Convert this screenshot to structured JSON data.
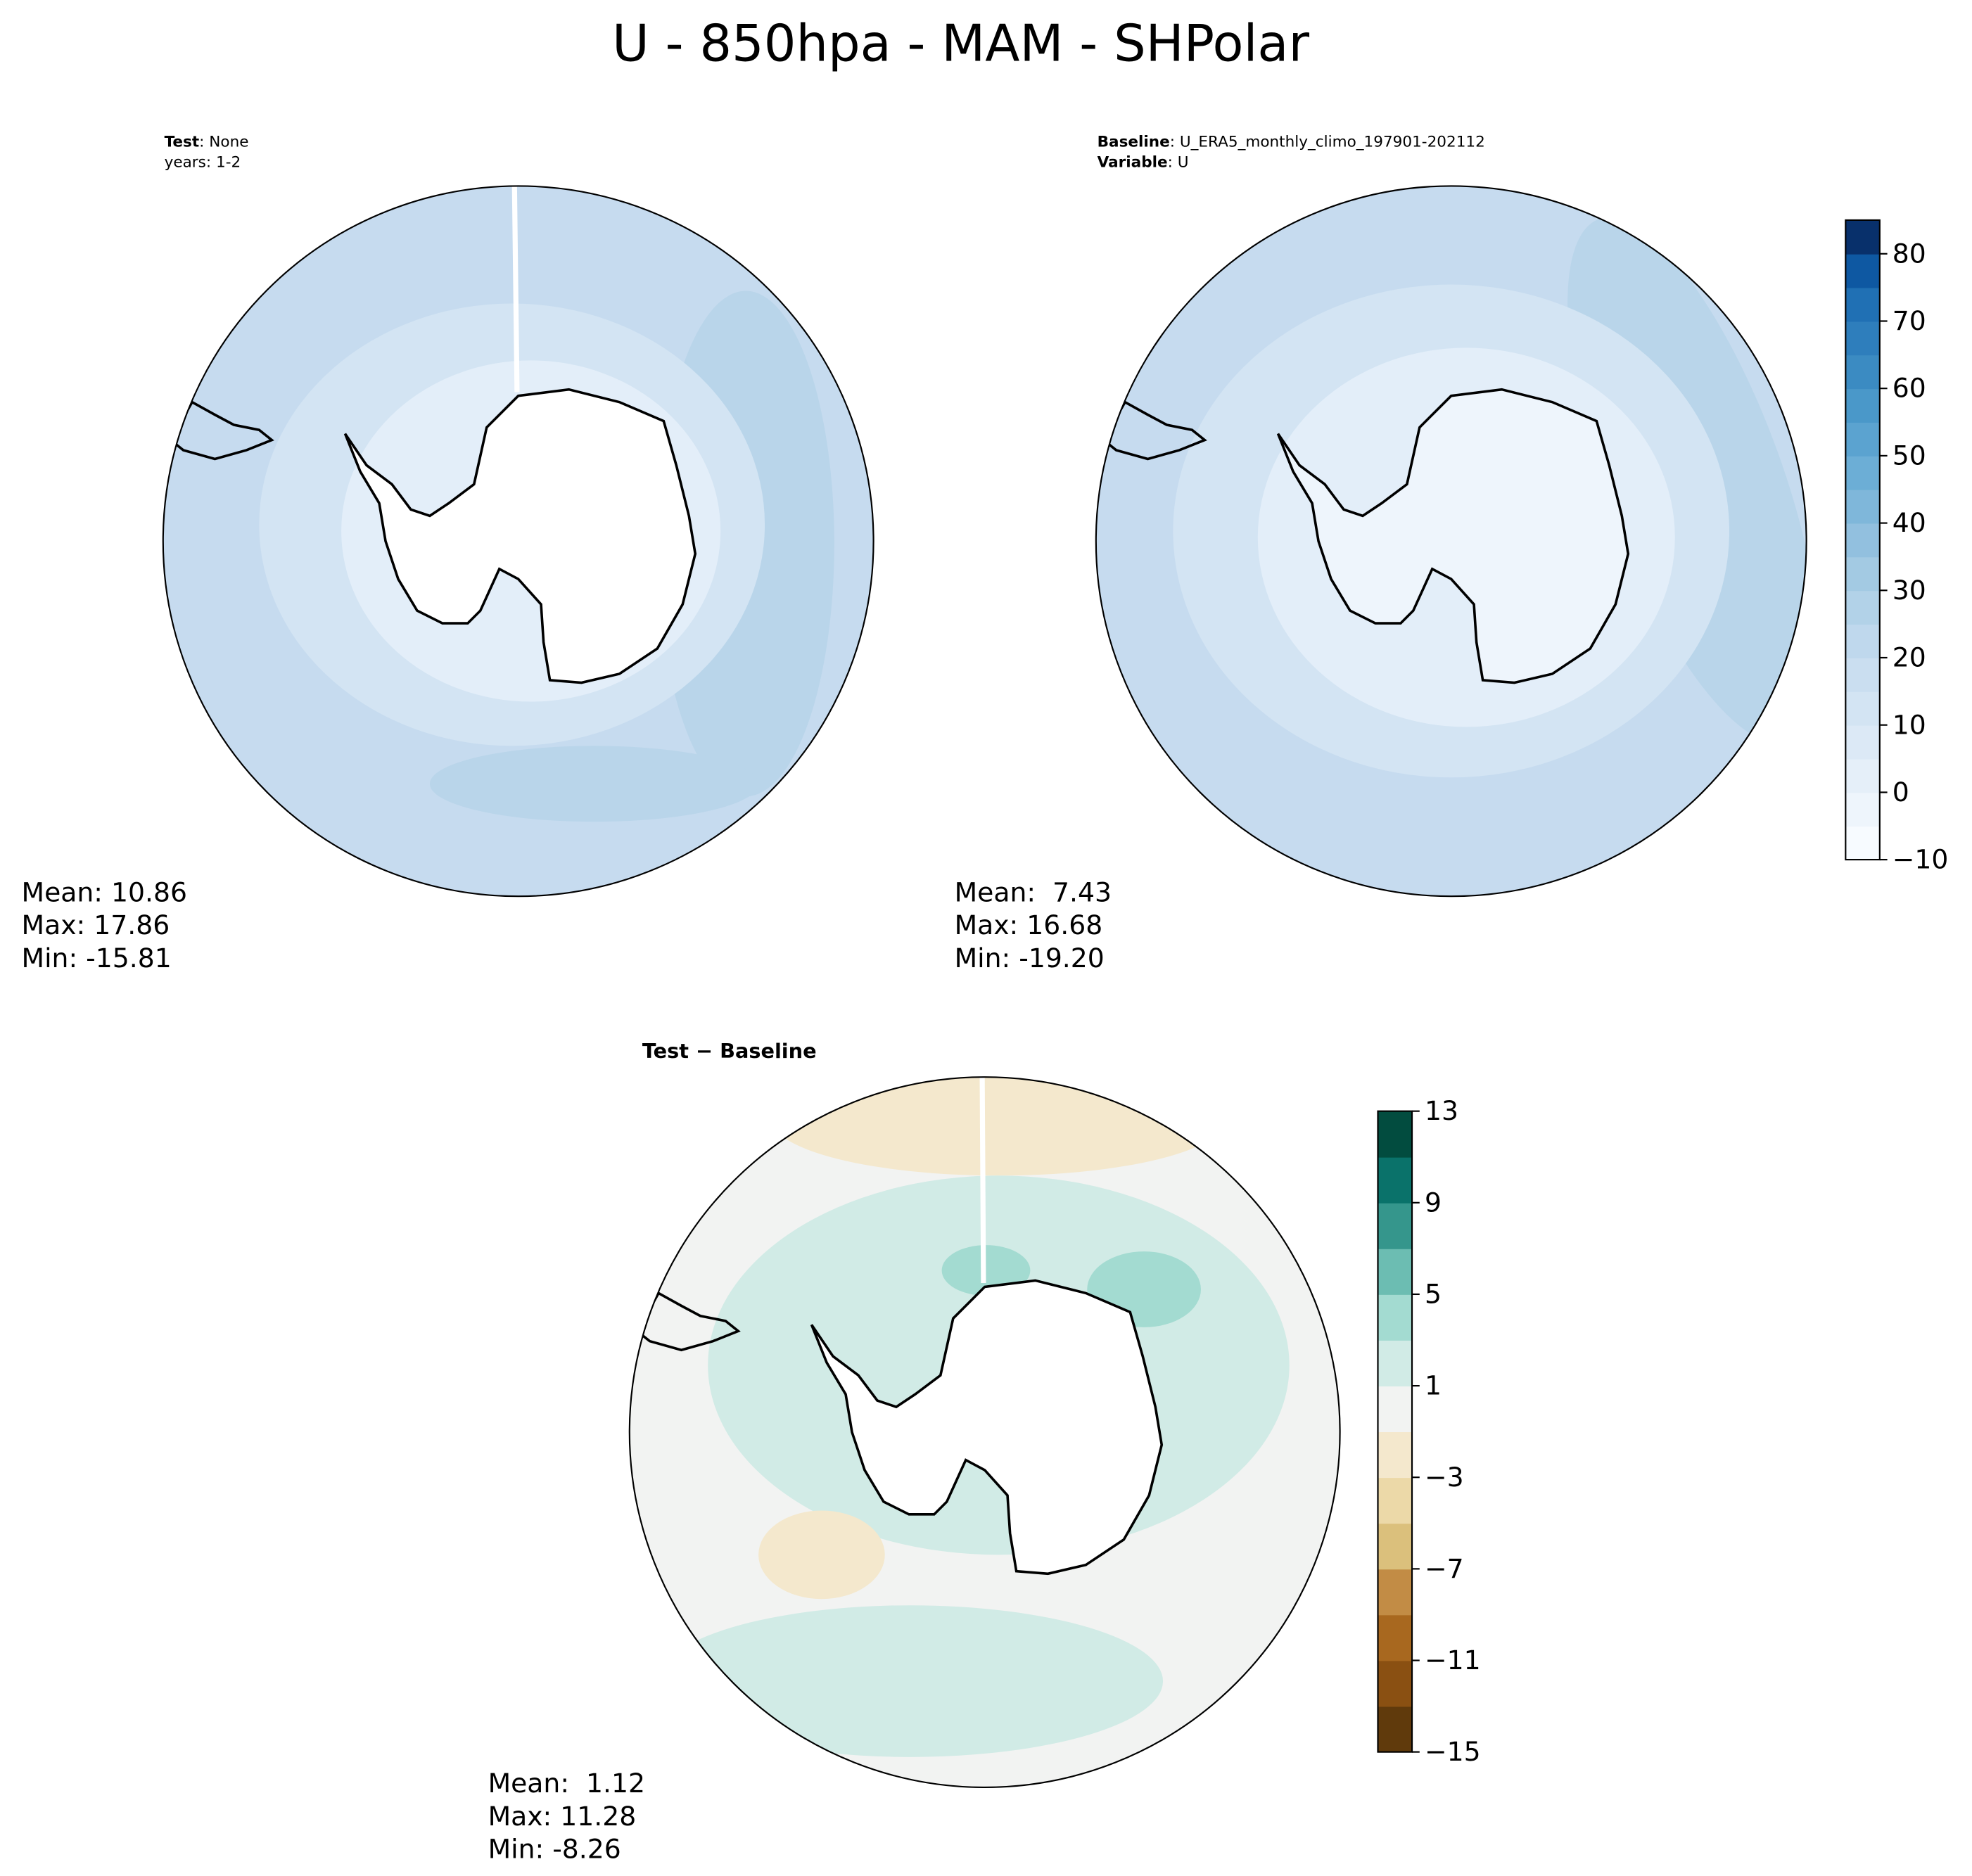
{
  "title": "U - 850hpa - MAM - SHPolar",
  "panels": [
    {
      "key": "Test",
      "text": ": None",
      "line2": "years: 1-2",
      "stats": [
        "Mean: 10.86",
        "Max: 17.86",
        "Min: -15.81"
      ]
    },
    {
      "key": "Baseline",
      "text": ": U_ERA5_monthly_climo_197901-202112",
      "key2": "Variable",
      "text2": ": U",
      "stats": [
        "Mean:  7.43",
        "Max: 16.68",
        "Min: -19.20"
      ]
    },
    {
      "heading": "Test − Baseline",
      "stats": [
        "Mean:  1.12",
        "Max: 11.28",
        "Min: -8.26"
      ]
    }
  ],
  "colorbars": [
    {
      "lim": [
        -10,
        85
      ],
      "ticks": [
        {
          "value": -10,
          "label": "−10"
        },
        0,
        10,
        20,
        30,
        40,
        50,
        60,
        70,
        80
      ],
      "colors": [
        "#f7fbff",
        "#eef5fc",
        "#e5eff9",
        "#dce9f6",
        "#d3e4f3",
        "#cadef0",
        "#bfd8ed",
        "#b2d2e8",
        "#a3cae3",
        "#92c0df",
        "#7fb7da",
        "#6caed6",
        "#5ba3d0",
        "#4a98c9",
        "#3b8bc2",
        "#2e7ebc",
        "#2070b4",
        "#0e58a2",
        "#08306b"
      ]
    },
    {
      "lim": [
        -15,
        13
      ],
      "ticks": [
        {
          "value": -15,
          "label": "−15"
        },
        {
          "value": -11,
          "label": "−11"
        },
        {
          "value": -7,
          "label": "−7"
        },
        {
          "value": -3,
          "label": "−3"
        },
        1,
        5,
        9,
        13
      ],
      "colors": [
        "#603a0c",
        "#8a5012",
        "#a8681f",
        "#c28c45",
        "#dbc07c",
        "#ecd9a8",
        "#f4e8cd",
        "#f2f3f2",
        "#d1ebe6",
        "#a3dbd1",
        "#6cbdb2",
        "#35968c",
        "#0a726a",
        "#024c3f"
      ]
    }
  ]
}
